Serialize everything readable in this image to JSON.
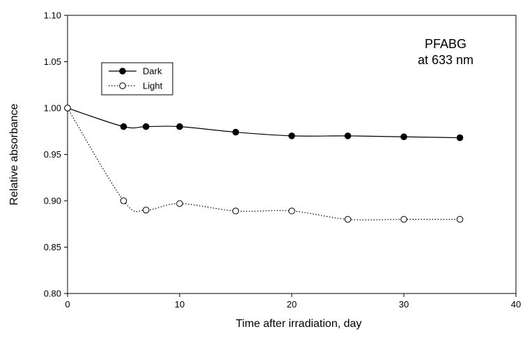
{
  "chart_data": {
    "type": "line",
    "xlabel": "Time after irradiation, day",
    "ylabel": "Relative absorbance",
    "xlim": [
      0,
      40
    ],
    "ylim": [
      0.8,
      1.1
    ],
    "xticks": [
      0,
      10,
      20,
      30,
      40
    ],
    "yticks": [
      "0.80",
      "0.85",
      "0.90",
      "0.95",
      "1.00",
      "1.05",
      "1.10"
    ],
    "annotation": [
      "PFABG",
      "at 633 nm"
    ],
    "legend_position": "upper-left",
    "grid": false,
    "series": [
      {
        "name": "Dark",
        "marker": "filled-circle",
        "line_style": "solid",
        "color": "#000000",
        "x": [
          0,
          5,
          7,
          10,
          15,
          20,
          25,
          30,
          35
        ],
        "y": [
          1.0,
          0.98,
          0.98,
          0.98,
          0.974,
          0.97,
          0.97,
          0.969,
          0.968
        ]
      },
      {
        "name": "Light",
        "marker": "open-circle",
        "line_style": "dotted",
        "color": "#000000",
        "x": [
          0,
          5,
          7,
          10,
          15,
          20,
          25,
          30,
          35
        ],
        "y": [
          1.0,
          0.9,
          0.89,
          0.897,
          0.889,
          0.889,
          0.88,
          0.88,
          0.88
        ]
      }
    ]
  }
}
